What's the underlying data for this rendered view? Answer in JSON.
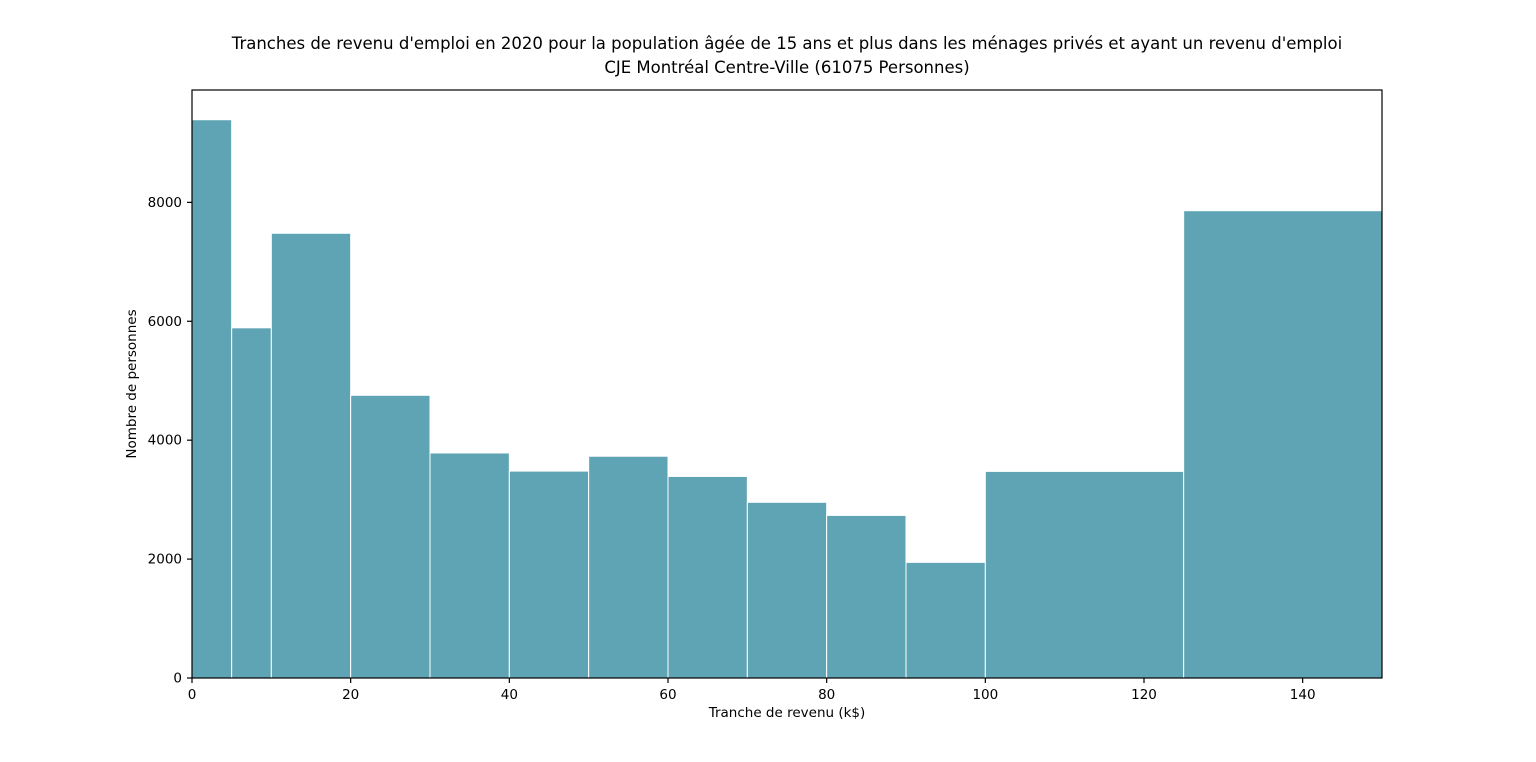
{
  "chart_data": {
    "type": "bar",
    "chart_kind": "histogram",
    "title": "Tranches de revenu d'emploi en 2020 pour la population âgée de 15 ans et plus dans les ménages privés et ayant un revenu d'emploi",
    "subtitle": "CJE Montréal Centre-Ville (61075 Personnes)",
    "xlabel": "Tranche de revenu (k$)",
    "ylabel": "Nombre de personnes",
    "total_persons": 61075,
    "bin_edges_k": [
      0,
      5,
      10,
      20,
      30,
      40,
      50,
      60,
      70,
      80,
      90,
      100,
      125,
      150
    ],
    "categories": [
      "0-5",
      "5-10",
      "10-20",
      "20-30",
      "30-40",
      "40-50",
      "50-60",
      "60-70",
      "70-80",
      "80-90",
      "90-100",
      "100-125",
      "125-150"
    ],
    "values": [
      9390,
      5890,
      7480,
      4755,
      3785,
      3480,
      3730,
      3390,
      2955,
      2735,
      1945,
      3475,
      7860
    ],
    "x_ticks": [
      0,
      20,
      40,
      60,
      80,
      100,
      120,
      140
    ],
    "y_ticks": [
      0,
      2000,
      4000,
      6000,
      8000
    ],
    "xlim": [
      0,
      150
    ],
    "ylim": [
      0,
      9890
    ],
    "grid": false,
    "legend": false,
    "bar_color": "#5fa4b4",
    "bar_edge_color": "#ffffff",
    "spine_color": "#000000",
    "text_color": "#000000"
  }
}
